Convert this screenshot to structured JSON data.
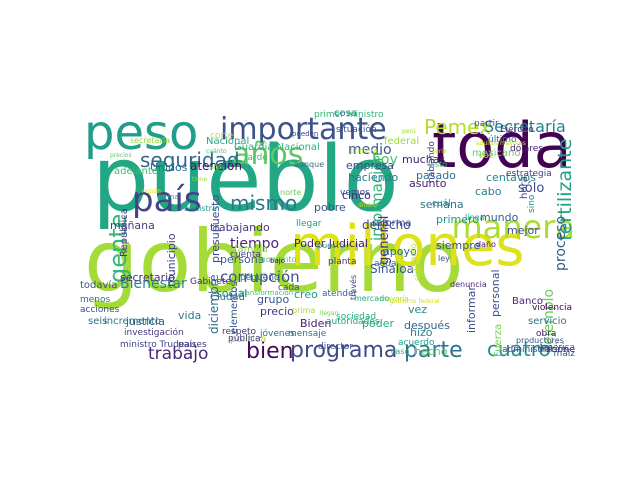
{
  "words": [
    {
      "text": "gobierno",
      "color": "#a5db36"
    },
    {
      "text": "pueblo",
      "color": "#22a785"
    },
    {
      "text": "millones",
      "color": "#dde318"
    },
    {
      "text": "toda",
      "color": "#440154"
    },
    {
      "text": "peso",
      "color": "#1f9e89"
    },
    {
      "text": "importante",
      "color": "#3b528b"
    },
    {
      "text": "país",
      "color": "#414487"
    },
    {
      "text": "años",
      "color": "#5ec962"
    },
    {
      "text": "manera",
      "color": "#addc30"
    },
    {
      "text": "gente",
      "color": "#35b779"
    },
    {
      "text": "seguridad",
      "color": "#31688e"
    },
    {
      "text": "programa",
      "color": "#3e4a89"
    },
    {
      "text": "parte",
      "color": "#2c728e"
    },
    {
      "text": "bien",
      "color": "#46085c"
    },
    {
      "text": "trabajo",
      "color": "#482878"
    },
    {
      "text": "cuatro",
      "color": "#21918c"
    },
    {
      "text": "mismo",
      "color": "#2a788e"
    },
    {
      "text": "Pemex",
      "color": "#b5de2b"
    },
    {
      "text": "Secretaría",
      "color": "#26828e"
    },
    {
      "text": "fertilizante",
      "color": "#1fa187"
    },
    {
      "text": "corrupción",
      "color": "#3b528b"
    },
    {
      "text": "proceso",
      "color": "#355f8d"
    },
    {
      "text": "ejemplo",
      "color": "#6ccd5a"
    },
    {
      "text": "Bienestar",
      "color": "#25858e"
    },
    {
      "text": "tiempo",
      "color": "#482475"
    },
    {
      "text": "información",
      "color": "#2fb47c"
    },
    {
      "text": "medio",
      "color": "#39568c"
    },
    {
      "text": "hoy",
      "color": "#4ac16d"
    },
    {
      "text": "general",
      "color": "#472d7b"
    },
    {
      "text": "sólo",
      "color": "#3e4c8a"
    },
    {
      "text": "haciendo",
      "color": "#287c8e"
    },
    {
      "text": "pasado",
      "color": "#2d708e"
    },
    {
      "text": "centavos",
      "color": "#26828e"
    },
    {
      "text": "cabo",
      "color": "#287d8e"
    },
    {
      "text": "mundo",
      "color": "#32648e"
    },
    {
      "text": "mejor",
      "color": "#3d4e8a"
    },
    {
      "text": "Sinaloa",
      "color": "#38598c"
    },
    {
      "text": "apoyo",
      "color": "#33638d"
    },
    {
      "text": "reforma",
      "color": "#3a548c"
    },
    {
      "text": "semana",
      "color": "#2a768e"
    },
    {
      "text": "primero",
      "color": "#1f988b"
    },
    {
      "text": "muchas",
      "color": "#481b6d"
    },
    {
      "text": "asunto",
      "color": "#482173"
    },
    {
      "text": "empresa",
      "color": "#3f4788"
    },
    {
      "text": "Unidos",
      "color": "#2c718e"
    },
    {
      "text": "Nacional",
      "color": "#22a884"
    },
    {
      "text": "Guardia Nacional",
      "color": "#2ab07f"
    },
    {
      "text": "federal",
      "color": "#a0da39"
    },
    {
      "text": "atención",
      "color": "#471164"
    },
    {
      "text": "adelante",
      "color": "#40bd72"
    },
    {
      "text": "mañana",
      "color": "#424086"
    },
    {
      "text": "trabajando",
      "color": "#453882"
    },
    {
      "text": "presupuesto",
      "color": "#3f4889"
    },
    {
      "text": "pobre",
      "color": "#3b518b"
    },
    {
      "text": "municipio",
      "color": "#414287"
    },
    {
      "text": "República",
      "color": "#443a83"
    },
    {
      "text": "secretario",
      "color": "#46307e"
    },
    {
      "text": "persona",
      "color": "#365c8d"
    },
    {
      "text": "familia",
      "color": "#8bd646"
    },
    {
      "text": "momento",
      "color": "#52c569"
    },
    {
      "text": "Poder Judicial",
      "color": "#481769"
    },
    {
      "text": "siempre",
      "color": "#3c4f8a"
    },
    {
      "text": "derecho",
      "color": "#404688"
    },
    {
      "text": "cinco",
      "color": "#481f70"
    },
    {
      "text": "Banco",
      "color": "#482576"
    },
    {
      "text": "social",
      "color": "#25838e"
    },
    {
      "text": "grupo",
      "color": "#3b528b"
    },
    {
      "text": "creo",
      "color": "#1f968b"
    },
    {
      "text": "Ciudad",
      "color": "#2e6e8e"
    },
    {
      "text": "precio",
      "color": "#46337f"
    },
    {
      "text": "Biden",
      "color": "#482071"
    },
    {
      "text": "poder",
      "color": "#25ac82"
    },
    {
      "text": "vez",
      "color": "#228c8d"
    },
    {
      "text": "después",
      "color": "#33638d"
    },
    {
      "text": "informar",
      "color": "#3d4d8a"
    },
    {
      "text": "personal",
      "color": "#3c508b"
    },
    {
      "text": "servicio",
      "color": "#2d708e"
    },
    {
      "text": "hizo",
      "color": "#24868e"
    },
    {
      "text": "hecho",
      "color": "#5ac864"
    },
    {
      "text": "acuerdo",
      "color": "#1fa088"
    },
    {
      "text": "elementos",
      "color": "#38598c"
    },
    {
      "text": "Fuerza",
      "color": "#73d056"
    },
    {
      "text": "incremento",
      "color": "#2a768e"
    },
    {
      "text": "diciembre",
      "color": "#2e6d8e"
    },
    {
      "text": "justicia",
      "color": "#32658e"
    },
    {
      "text": "vida",
      "color": "#2a788e"
    },
    {
      "text": "seis",
      "color": "#306a8e"
    },
    {
      "text": "todavía",
      "color": "#3b528b"
    },
    {
      "text": "política",
      "color": "#b8de29"
    },
    {
      "text": "países",
      "color": "#453781"
    },
    {
      "text": "ministro Trudeau",
      "color": "#414487"
    },
    {
      "text": "investigación",
      "color": "#463480"
    },
    {
      "text": "obra",
      "color": "#48196b"
    },
    {
      "text": "América",
      "color": "#31688e"
    },
    {
      "text": "violencia",
      "color": "#440154"
    },
    {
      "text": "maíz",
      "color": "#3b528b"
    },
    {
      "text": "informe",
      "color": "#453882"
    },
    {
      "text": "administración",
      "color": "#3e4989"
    },
    {
      "text": "director",
      "color": "#3a548c"
    },
    {
      "text": "mexicano",
      "color": "#6ece58"
    },
    {
      "text": "Ejército",
      "color": "#472f7d"
    },
    {
      "text": "voz",
      "color": "#a2da37"
    },
    {
      "text": "último",
      "color": "#2b748e"
    },
    {
      "text": "dólares",
      "color": "#481d6f"
    },
    {
      "text": "llegar",
      "color": "#1f9a8a"
    },
    {
      "text": "hora",
      "color": "#3f4788"
    },
    {
      "text": "sino",
      "color": "#24878e"
    },
    {
      "text": "cuenta",
      "color": "#443983"
    },
    {
      "text": "pequeño",
      "color": "#2b748e"
    },
    {
      "text": "tarde",
      "color": "#3ebc74"
    },
    {
      "text": "cada",
      "color": "#424186"
    },
    {
      "text": "sociedad",
      "color": "#25ab82"
    },
    {
      "text": "autoridades",
      "color": "#20a386"
    },
    {
      "text": "jóvenes",
      "color": "#2e6f8e"
    },
    {
      "text": "pública",
      "color": "#433e85"
    },
    {
      "text": "respeto",
      "color": "#46327e"
    },
    {
      "text": "mensaje",
      "color": "#2c738e"
    },
    {
      "text": "Gabinete",
      "color": "#482979"
    },
    {
      "text": "atender",
      "color": "#31678e"
    },
    {
      "text": "planta",
      "color": "#463480"
    },
    {
      "text": "vemos",
      "color": "#3f4788"
    },
    {
      "text": "agua",
      "color": "#2d718e"
    },
    {
      "text": "cuál",
      "color": "#23898e"
    },
    {
      "text": "daño",
      "color": "#481668"
    },
    {
      "text": "ministra",
      "color": "#1e9c89"
    },
    {
      "text": "productores",
      "color": "#3a538b"
    },
    {
      "text": "denuncia",
      "color": "#482979"
    },
    {
      "text": "ley",
      "color": "#3b528b"
    },
    {
      "text": "estrategia",
      "color": "#424086"
    },
    {
      "text": "partir",
      "color": "#3a548c"
    },
    {
      "text": "aunque",
      "color": "#2f6c8e"
    },
    {
      "text": "corte",
      "color": "#c8e020"
    },
    {
      "text": "cosa",
      "color": "#2b758e"
    },
    {
      "text": "primer ministro",
      "color": "#2fb47c"
    },
    {
      "text": "situación",
      "color": "#3d4e8a"
    },
    {
      "text": "secretaria",
      "color": "#95d840"
    },
    {
      "text": "menos",
      "color": "#2c718e"
    },
    {
      "text": "acciones",
      "color": "#3e4a89"
    },
    {
      "text": "hablando",
      "color": "#453882"
    },
    {
      "text": "siguen",
      "color": "#d8e219"
    },
    {
      "text": "través",
      "color": "#433d84"
    },
    {
      "text": "forma",
      "color": "#20a386"
    },
    {
      "text": "cuanto",
      "color": "#b5de2b"
    },
    {
      "text": "prima",
      "color": "#a8db34"
    },
    {
      "text": "mayoría",
      "color": "#addc30"
    },
    {
      "text": "bajo",
      "color": "#440154"
    },
    {
      "text": "transformación",
      "color": "#44bf70"
    },
    {
      "text": "primera",
      "color": "#b0dd2f"
    },
    {
      "text": "pueden",
      "color": "#3e4c8a"
    },
    {
      "text": "adultos mayores",
      "color": "#c2df23"
    },
    {
      "text": "dinero",
      "color": "#bade28"
    },
    {
      "text": "cuánto",
      "color": "#4ec36b"
    },
    {
      "text": "llegan",
      "color": "#70cf57"
    },
    {
      "text": "año",
      "color": "#75d054"
    },
    {
      "text": "precios",
      "color": "#5cc863"
    },
    {
      "text": "perú",
      "color": "#a0da39"
    },
    {
      "text": "tiene",
      "color": "#9bd93c"
    },
    {
      "text": "serie",
      "color": "#b8de29"
    },
    {
      "text": "región",
      "color": "#e5e419"
    },
    {
      "text": "gobierno federal",
      "color": "#d2e21b"
    },
    {
      "text": "norte",
      "color": "#6ccd5a"
    },
    {
      "text": "puesto",
      "color": "#1fa088"
    },
    {
      "text": "mercado",
      "color": "#25ac82"
    },
    {
      "text": "caso",
      "color": "#2fb47c"
    },
    {
      "text": "visto",
      "color": "#3dbc74"
    },
    {
      "text": "línea",
      "color": "#22a884"
    }
  ]
}
